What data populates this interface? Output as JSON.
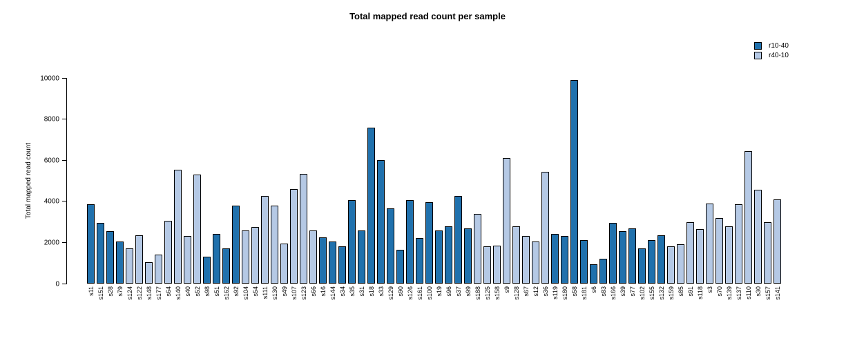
{
  "chart_data": {
    "type": "bar",
    "title": "Total mapped read count per sample",
    "xlabel": "",
    "ylabel": "Total mapped read count",
    "ylim": [
      0,
      10000
    ],
    "yticks": [
      0,
      2000,
      4000,
      6000,
      8000,
      10000
    ],
    "grid": false,
    "legend_position": "top-right",
    "series": [
      {
        "name": "r10-40",
        "color": "#2071AD"
      },
      {
        "name": "r40-10",
        "color": "#B5C9E5"
      }
    ],
    "bars": [
      {
        "label": "s11",
        "value": 3850,
        "series": "r10-40"
      },
      {
        "label": "s151",
        "value": 2950,
        "series": "r10-40"
      },
      {
        "label": "s28",
        "value": 2550,
        "series": "r10-40"
      },
      {
        "label": "s79",
        "value": 2050,
        "series": "r10-40"
      },
      {
        "label": "s124",
        "value": 1700,
        "series": "r40-10"
      },
      {
        "label": "s122",
        "value": 2350,
        "series": "r40-10"
      },
      {
        "label": "s148",
        "value": 1050,
        "series": "r40-10"
      },
      {
        "label": "s177",
        "value": 1400,
        "series": "r40-10"
      },
      {
        "label": "s64",
        "value": 3050,
        "series": "r40-10"
      },
      {
        "label": "s140",
        "value": 5550,
        "series": "r40-10"
      },
      {
        "label": "s40",
        "value": 2300,
        "series": "r40-10"
      },
      {
        "label": "s52",
        "value": 5300,
        "series": "r40-10"
      },
      {
        "label": "s98",
        "value": 1300,
        "series": "r10-40"
      },
      {
        "label": "s51",
        "value": 2400,
        "series": "r10-40"
      },
      {
        "label": "s162",
        "value": 1700,
        "series": "r10-40"
      },
      {
        "label": "s92",
        "value": 3800,
        "series": "r10-40"
      },
      {
        "label": "s104",
        "value": 2600,
        "series": "r40-10"
      },
      {
        "label": "s54",
        "value": 2750,
        "series": "r40-10"
      },
      {
        "label": "s111",
        "value": 4250,
        "series": "r40-10"
      },
      {
        "label": "s130",
        "value": 3800,
        "series": "r40-10"
      },
      {
        "label": "s49",
        "value": 1950,
        "series": "r40-10"
      },
      {
        "label": "s107",
        "value": 4600,
        "series": "r40-10"
      },
      {
        "label": "s123",
        "value": 5350,
        "series": "r40-10"
      },
      {
        "label": "s66",
        "value": 2600,
        "series": "r40-10"
      },
      {
        "label": "s16",
        "value": 2250,
        "series": "r10-40"
      },
      {
        "label": "s144",
        "value": 2050,
        "series": "r10-40"
      },
      {
        "label": "s34",
        "value": 1800,
        "series": "r10-40"
      },
      {
        "label": "s35",
        "value": 4050,
        "series": "r10-40"
      },
      {
        "label": "s31",
        "value": 2600,
        "series": "r10-40"
      },
      {
        "label": "s18",
        "value": 7600,
        "series": "r10-40"
      },
      {
        "label": "s33",
        "value": 6000,
        "series": "r10-40"
      },
      {
        "label": "s129",
        "value": 3650,
        "series": "r10-40"
      },
      {
        "label": "s90",
        "value": 1650,
        "series": "r10-40"
      },
      {
        "label": "s126",
        "value": 4050,
        "series": "r10-40"
      },
      {
        "label": "s161",
        "value": 2200,
        "series": "r10-40"
      },
      {
        "label": "s100",
        "value": 3950,
        "series": "r10-40"
      },
      {
        "label": "s19",
        "value": 2600,
        "series": "r10-40"
      },
      {
        "label": "s96",
        "value": 2800,
        "series": "r10-40"
      },
      {
        "label": "s37",
        "value": 4250,
        "series": "r10-40"
      },
      {
        "label": "s99",
        "value": 2700,
        "series": "r10-40"
      },
      {
        "label": "s188",
        "value": 3400,
        "series": "r40-10"
      },
      {
        "label": "s125",
        "value": 1800,
        "series": "r40-10"
      },
      {
        "label": "s158",
        "value": 1850,
        "series": "r40-10"
      },
      {
        "label": "s9",
        "value": 6100,
        "series": "r40-10"
      },
      {
        "label": "s128",
        "value": 2800,
        "series": "r40-10"
      },
      {
        "label": "s67",
        "value": 2300,
        "series": "r40-10"
      },
      {
        "label": "s12",
        "value": 2050,
        "series": "r40-10"
      },
      {
        "label": "s36",
        "value": 5450,
        "series": "r40-10"
      },
      {
        "label": "s119",
        "value": 2400,
        "series": "r10-40"
      },
      {
        "label": "s180",
        "value": 2300,
        "series": "r10-40"
      },
      {
        "label": "s58",
        "value": 9900,
        "series": "r10-40"
      },
      {
        "label": "s181",
        "value": 2100,
        "series": "r10-40"
      },
      {
        "label": "s6",
        "value": 950,
        "series": "r10-40"
      },
      {
        "label": "s83",
        "value": 1200,
        "series": "r10-40"
      },
      {
        "label": "s166",
        "value": 2950,
        "series": "r10-40"
      },
      {
        "label": "s39",
        "value": 2550,
        "series": "r10-40"
      },
      {
        "label": "s77",
        "value": 2700,
        "series": "r10-40"
      },
      {
        "label": "s102",
        "value": 1700,
        "series": "r10-40"
      },
      {
        "label": "s155",
        "value": 2100,
        "series": "r10-40"
      },
      {
        "label": "s132",
        "value": 2350,
        "series": "r10-40"
      },
      {
        "label": "s159",
        "value": 1800,
        "series": "r40-10"
      },
      {
        "label": "s85",
        "value": 1900,
        "series": "r40-10"
      },
      {
        "label": "s91",
        "value": 3000,
        "series": "r40-10"
      },
      {
        "label": "s118",
        "value": 2650,
        "series": "r40-10"
      },
      {
        "label": "s3",
        "value": 3900,
        "series": "r40-10"
      },
      {
        "label": "s70",
        "value": 3200,
        "series": "r40-10"
      },
      {
        "label": "s139",
        "value": 2800,
        "series": "r40-10"
      },
      {
        "label": "s137",
        "value": 3850,
        "series": "r40-10"
      },
      {
        "label": "s110",
        "value": 6450,
        "series": "r40-10"
      },
      {
        "label": "s30",
        "value": 4550,
        "series": "r40-10"
      },
      {
        "label": "s157",
        "value": 3000,
        "series": "r40-10"
      },
      {
        "label": "s141",
        "value": 4100,
        "series": "r40-10"
      }
    ]
  }
}
